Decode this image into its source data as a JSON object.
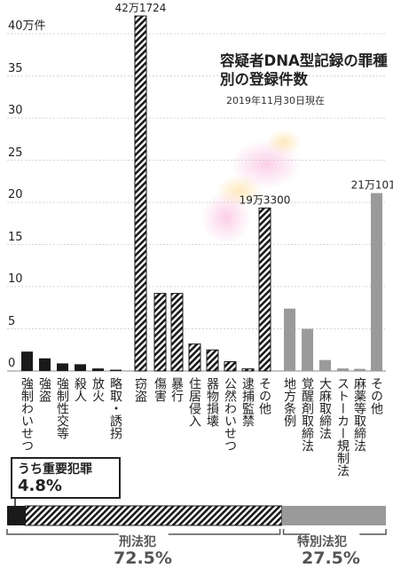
{
  "title": "容疑者DNA型記録の罪種別の登録件数",
  "subtitle": "2019年11月30日現在",
  "chart_data": {
    "type": "bar",
    "ylabel_unit": "40万件",
    "ylim": [
      0,
      40
    ],
    "yticks": [
      0,
      5,
      10,
      15,
      20,
      25,
      30,
      35,
      40
    ],
    "ytick_labels": [
      "0",
      "5",
      "10",
      "15",
      "20",
      "25",
      "30",
      "35",
      "40万件"
    ],
    "categories": [
      "強制わいせつ",
      "強盗",
      "強制性交等",
      "殺人",
      "放火",
      "略取・誘拐",
      "窃盗",
      "傷害",
      "暴行",
      "住居侵入",
      "器物損壊",
      "公然わいせつ",
      "逮捕監禁",
      "その他",
      "地方条例",
      "覚醒剤取締法",
      "大麻取締法",
      "ストーカー規制法",
      "麻薬等取締法",
      "その他"
    ],
    "values": [
      2.3,
      1.5,
      0.9,
      0.8,
      0.3,
      0.15,
      42.1724,
      9.2,
      9.2,
      3.2,
      2.5,
      1.1,
      0.25,
      19.33,
      7.4,
      5.0,
      1.3,
      0.3,
      0.25,
      21.1018
    ],
    "groups": [
      "重要犯罪",
      "重要犯罪",
      "重要犯罪",
      "重要犯罪",
      "重要犯罪",
      "重要犯罪",
      "刑法犯",
      "刑法犯",
      "刑法犯",
      "刑法犯",
      "刑法犯",
      "刑法犯",
      "刑法犯",
      "刑法犯",
      "特別法犯",
      "特別法犯",
      "特別法犯",
      "特別法犯",
      "特別法犯",
      "特別法犯"
    ],
    "data_labels": [
      {
        "index": 6,
        "text": "42万1724"
      },
      {
        "index": 13,
        "text": "19万3300"
      },
      {
        "index": 19,
        "text": "21万1018"
      }
    ],
    "colors": {
      "重要犯罪": "#1a1a1a",
      "刑法犯": "#1a1a1a",
      "特別法犯": "#9a9a9a"
    },
    "share": {
      "key_title": "うち重要犯罪",
      "key_value": "4.8%",
      "segments": [
        {
          "name": "重要犯罪",
          "value": 4.8
        },
        {
          "name": "刑法犯",
          "label": "刑法犯",
          "value_label": "72.5%",
          "value": 72.5
        },
        {
          "name": "特別法犯",
          "label": "特別法犯",
          "value_label": "27.5%",
          "value": 27.5
        }
      ]
    },
    "grid": true
  }
}
